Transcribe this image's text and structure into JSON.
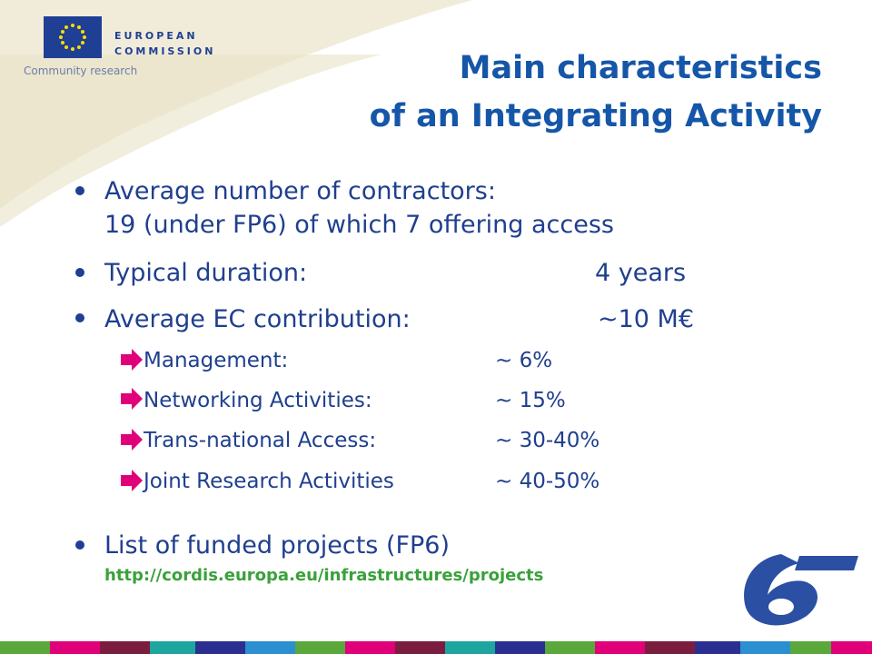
{
  "logo": {
    "line1": "EUROPEAN",
    "line2": "COMMISSION",
    "tagline": "Community research"
  },
  "title": {
    "lines": [
      "Main characteristics",
      "of an Integrating Activity"
    ]
  },
  "bullets": [
    {
      "lines": [
        "Average number of contractors:",
        "19 (under FP6) of which 7 offering access"
      ]
    },
    {
      "label": "Typical duration:",
      "value": "4 years"
    },
    {
      "label": "Average EC contribution:",
      "value": "~10 M€"
    }
  ],
  "sub_items": [
    {
      "label": "Management:",
      "value": "~ 6%"
    },
    {
      "label": "Networking Activities:",
      "value": "~ 15%"
    },
    {
      "label": "Trans-national Access:",
      "value": "~ 30-40%"
    },
    {
      "label": "Joint Research Activities",
      "value": "~ 40-50%"
    }
  ],
  "list_bullet": {
    "text": "List of funded projects (FP6)",
    "link": "http://cordis.europa.eu/infrastructures/projects"
  }
}
